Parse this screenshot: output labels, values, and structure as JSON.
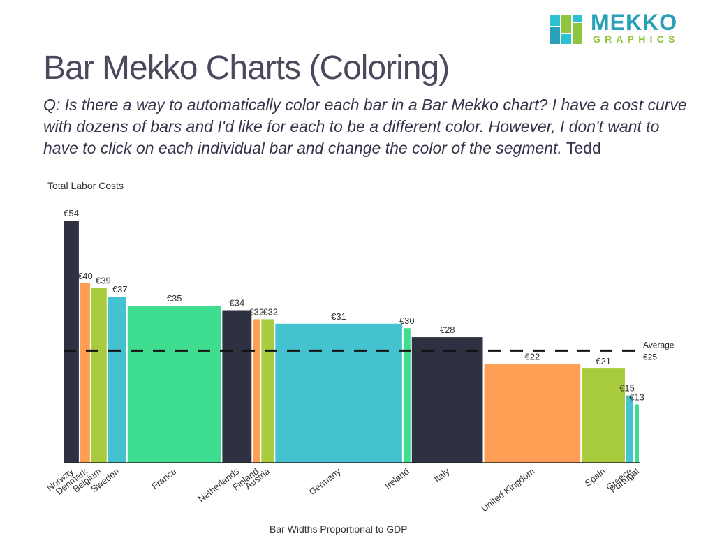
{
  "brand": {
    "logo_top": "MEKKO",
    "logo_bottom": "GRAPHICS",
    "colors": [
      "#2ec1d1",
      "#8ec63f",
      "#2a9fb8"
    ]
  },
  "page": {
    "title": "Bar Mekko Charts (Coloring)",
    "question": "Q: Is there a way to automatically color each bar in a Bar Mekko chart?  I have a cost curve with dozens of bars and I'd like for each to be a different color. However, I don't want to have to click on each individual bar and change the color of the segment.",
    "author": "Tedd"
  },
  "chart_data": {
    "type": "bar",
    "title": "Total Labor Costs",
    "xlabel": "Bar Widths Proportional to GDP",
    "ylabel": "",
    "ylim": [
      0,
      54
    ],
    "categories": [
      "Norway",
      "Denmark",
      "Belgium",
      "Sweden",
      "France",
      "Netherlands",
      "Finland",
      "Austria",
      "Germany",
      "Ireland",
      "Italy",
      "United Kingdom",
      "Spain",
      "Greece",
      "Portugal"
    ],
    "values": [
      54,
      40,
      39,
      37,
      35,
      34,
      32,
      32,
      31,
      30,
      28,
      22,
      21,
      15,
      13
    ],
    "value_labels": [
      "€54",
      "€40",
      "€39",
      "€37",
      "€35",
      "€34",
      "€32",
      "€32",
      "€31",
      "€30",
      "€28",
      "€22",
      "€21",
      "€15",
      "€13"
    ],
    "widths": [
      3.0,
      2.0,
      3.0,
      3.5,
      17.0,
      5.5,
      1.5,
      2.5,
      23.0,
      1.5,
      13.0,
      17.5,
      8.0,
      1.5,
      1.0
    ],
    "colors": [
      "#2d3142",
      "#ff9f55",
      "#a8cc3e",
      "#44c2d0",
      "#3fdd90",
      "#2d3142",
      "#ff9f55",
      "#a8cc3e",
      "#44c2d0",
      "#3fdd90",
      "#2d3142",
      "#ff9f55",
      "#a8cc3e",
      "#44c2d0",
      "#3fdd90"
    ],
    "average": {
      "label": "Average",
      "value_label": "€25",
      "value": 25
    },
    "grid": false,
    "legend": "none"
  }
}
